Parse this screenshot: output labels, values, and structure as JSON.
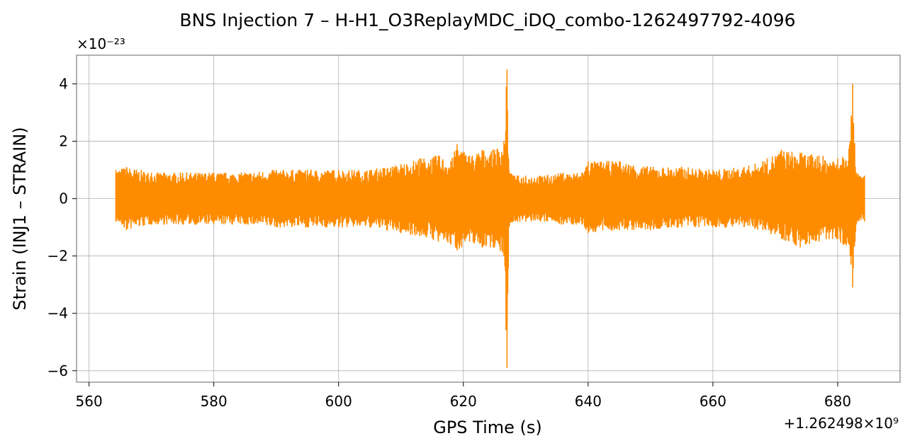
{
  "chart_data": {
    "type": "line",
    "title": "BNS Injection 7 – H-H1_O3ReplayMDC_iDQ_combo-1262497792-4096",
    "xlabel": "GPS Time (s)",
    "ylabel": "Strain (INJ1 – STRAIN)",
    "x_offset_label": "+1.262498×10⁹",
    "y_scale_label": "×10⁻²³",
    "xlim": [
      558,
      690
    ],
    "ylim": [
      -6.4,
      5.0
    ],
    "x_ticks": [
      560,
      580,
      600,
      620,
      640,
      660,
      680
    ],
    "y_ticks": [
      -6,
      -4,
      -2,
      0,
      2,
      4
    ],
    "grid": true,
    "series": [
      {
        "color": "#ff8c00",
        "x": [
          564.3,
          566,
          570,
          575,
          580,
          585,
          590,
          595,
          600,
          605,
          610,
          613,
          616,
          618,
          619,
          621,
          623,
          625,
          626.5,
          627.0,
          627.3,
          628,
          630,
          633,
          636,
          639,
          640,
          645,
          650,
          655,
          660,
          665,
          668,
          671,
          674,
          677,
          680,
          682.0,
          682.4,
          683,
          684.3
        ],
        "upper": [
          1.0,
          1.1,
          0.9,
          0.9,
          0.9,
          0.9,
          1.0,
          1.0,
          1.0,
          1.0,
          1.2,
          1.4,
          1.5,
          1.3,
          1.9,
          1.5,
          1.7,
          1.7,
          2.0,
          4.5,
          1.0,
          0.8,
          0.8,
          0.8,
          0.9,
          0.9,
          1.3,
          1.3,
          1.1,
          1.1,
          1.0,
          1.1,
          1.3,
          1.7,
          1.6,
          1.5,
          1.4,
          2.0,
          4.0,
          0.9,
          0.8
        ],
        "lower": [
          -0.8,
          -1.1,
          -0.9,
          -0.9,
          -0.9,
          -0.9,
          -1.0,
          -1.0,
          -1.0,
          -1.0,
          -1.2,
          -1.3,
          -1.5,
          -1.6,
          -1.8,
          -1.5,
          -1.7,
          -1.7,
          -2.0,
          -5.9,
          -1.0,
          -0.8,
          -0.8,
          -0.8,
          -0.9,
          -0.9,
          -1.2,
          -1.1,
          -1.1,
          -1.0,
          -1.0,
          -1.0,
          -1.1,
          -1.4,
          -1.7,
          -1.5,
          -1.4,
          -2.0,
          -3.1,
          -0.9,
          -0.8
        ]
      }
    ]
  }
}
